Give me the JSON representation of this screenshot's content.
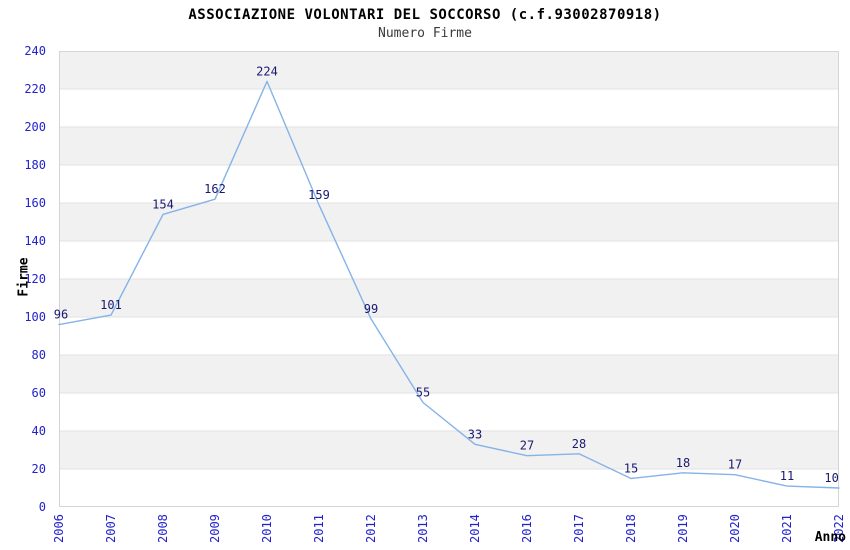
{
  "header": {
    "title": "ASSOCIAZIONE VOLONTARI DEL SOCCORSO (c.f.93002870918)",
    "subtitle": "Numero Firme"
  },
  "chart_data": {
    "type": "line",
    "title": "ASSOCIAZIONE VOLONTARI DEL SOCCORSO (c.f.93002870918)",
    "subtitle": "Numero Firme",
    "xlabel": "Anno",
    "ylabel": "Firme",
    "categories": [
      "2006",
      "2007",
      "2008",
      "2009",
      "2010",
      "2011",
      "2012",
      "2013",
      "2014",
      "2016",
      "2017",
      "2018",
      "2019",
      "2020",
      "2021",
      "2022"
    ],
    "values": [
      96,
      101,
      154,
      162,
      224,
      159,
      99,
      55,
      33,
      27,
      28,
      15,
      18,
      17,
      11,
      10
    ],
    "ylim": [
      0,
      240
    ],
    "ytick_step": 20,
    "grid": true,
    "legend_position": "none",
    "data_labels_visible": true,
    "colors": {
      "line": "#85b3e8",
      "tick_label": "#2222cc",
      "data_label": "#191970",
      "band_gray": "#f1f1f1",
      "gridline": "#e2e2e2",
      "plot_border": "#d5d5d5",
      "axis_title": "#000000"
    }
  }
}
